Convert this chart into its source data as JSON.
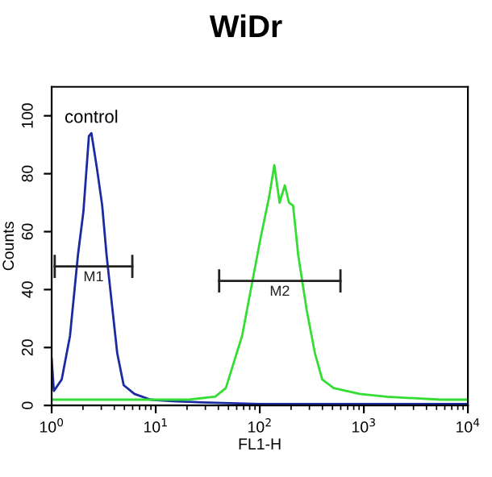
{
  "chart_data": {
    "type": "line",
    "title": "WiDr",
    "xlabel": "FL1-H",
    "ylabel": "Counts",
    "log": "x",
    "xlim": [
      1,
      10000
    ],
    "ylim": [
      0,
      110
    ],
    "xticks": [
      {
        "value": 1,
        "label": "10$^{0}$"
      },
      {
        "value": 10,
        "label": "10$^{1}$"
      },
      {
        "value": 100,
        "label": "10$^{2}$"
      },
      {
        "value": 1000,
        "label": "10$^{3}$"
      },
      {
        "value": 10000,
        "label": "10$^{4}$"
      }
    ],
    "yticks": [
      0,
      20,
      40,
      60,
      80,
      100
    ],
    "grid": false,
    "legend": false,
    "annotations": [
      {
        "text": "control",
        "x": 2.41,
        "y": 94
      }
    ],
    "series": [
      {
        "color": "#1a2aa0",
        "x": [
          1,
          1.05,
          1.25,
          1.5,
          1.79,
          2.02,
          2.28,
          2.41,
          2.72,
          3.06,
          3.37,
          3.79,
          4.27,
          4.92,
          6.24,
          8.91,
          14.5,
          31.6,
          100,
          1000,
          10000
        ],
        "values": [
          16,
          5,
          9,
          24,
          52,
          67,
          93,
          94,
          82,
          69,
          52,
          35,
          18,
          7,
          4,
          2,
          1.5,
          1,
          0.5,
          0.5,
          0.5
        ]
      },
      {
        "color": "#33dd33",
        "x": [
          1,
          10,
          20,
          37.2,
          47.2,
          67.6,
          85.1,
          102,
          123,
          138,
          155,
          174,
          191,
          209,
          234,
          282,
          339,
          398,
          513,
          912,
          1660,
          5500,
          10000
        ],
        "values": [
          2,
          2,
          2,
          3,
          6,
          24,
          43,
          58,
          72,
          83,
          70,
          76,
          70,
          69,
          52,
          33,
          18,
          9,
          6,
          4,
          3,
          2,
          2
        ]
      },
      {
        "name": "M1",
        "color": "#222222",
        "x": [
          1.07,
          5.96
        ],
        "values": [
          48,
          48
        ],
        "errors": [
          4,
          4
        ]
      },
      {
        "name": "M2",
        "color": "#222222",
        "x": [
          40.7,
          596
        ],
        "values": [
          43,
          43
        ],
        "errors": [
          4,
          4
        ]
      }
    ]
  }
}
